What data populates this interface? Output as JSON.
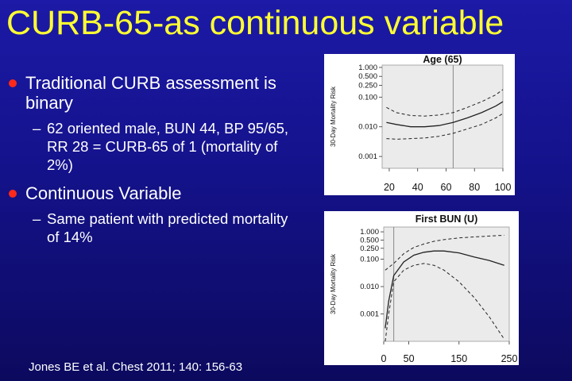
{
  "slide": {
    "title": "CURB-65-as continuous variable",
    "bullets": [
      {
        "text": "Traditional CURB assessment is binary",
        "sub": "62 oriented male, BUN 44, BP 95/65, RR 28 = CURB-65 of 1 (mortality of 2%)"
      },
      {
        "text": "Continuous Variable",
        "sub": "Same patient with predicted mortality of 14%"
      }
    ],
    "citation": "Jones BE et al. Chest 2011; 140: 156-63",
    "bullet_dash": "–"
  },
  "colors": {
    "background": "#14128a",
    "title": "#ffff33",
    "bullet_dot": "#ff2a1a",
    "text": "#ffffff"
  },
  "chart_data": [
    {
      "type": "line",
      "title": "Age (65)",
      "ylabel": "30-Day Mortality Risk",
      "xlabel": "",
      "y_scale": "log",
      "y_ticks": [
        "1.000",
        "0.500",
        "0.250",
        "0.100",
        "0.010",
        "0.001"
      ],
      "x_ticks": [
        "20",
        "40",
        "60",
        "80",
        "100"
      ],
      "xlim": [
        15,
        100
      ],
      "ylim": [
        0.0004,
        1.2
      ],
      "reference_x": 65,
      "series": [
        {
          "x": [
            18,
            25,
            35,
            45,
            55,
            65,
            75,
            85,
            95,
            100
          ],
          "y": [
            0.014,
            0.012,
            0.01,
            0.01,
            0.011,
            0.014,
            0.02,
            0.03,
            0.05,
            0.07
          ]
        },
        {
          "x": [
            18,
            25,
            35,
            45,
            55,
            65,
            75,
            85,
            95,
            100
          ],
          "y": [
            0.045,
            0.03,
            0.024,
            0.023,
            0.025,
            0.03,
            0.045,
            0.07,
            0.12,
            0.18
          ]
        },
        {
          "x": [
            18,
            25,
            35,
            45,
            55,
            65,
            75,
            85,
            95,
            100
          ],
          "y": [
            0.004,
            0.0038,
            0.004,
            0.0042,
            0.0048,
            0.006,
            0.0085,
            0.012,
            0.02,
            0.028
          ]
        }
      ]
    },
    {
      "type": "line",
      "title": "First BUN (U)",
      "ylabel": "30-Day Mortality Risk",
      "xlabel": "",
      "y_scale": "log",
      "y_ticks": [
        "1.000",
        "0.500",
        "0.250",
        "0.100",
        "0.010",
        "0.001"
      ],
      "x_ticks": [
        "0",
        "50",
        "150",
        "250"
      ],
      "xlim": [
        0,
        250
      ],
      "ylim": [
        0.0001,
        1.5
      ],
      "reference_x": 20,
      "series": [
        {
          "x": [
            3,
            10,
            20,
            40,
            60,
            80,
            100,
            120,
            150,
            180,
            210,
            240
          ],
          "y": [
            0.0003,
            0.003,
            0.025,
            0.08,
            0.14,
            0.18,
            0.2,
            0.2,
            0.17,
            0.12,
            0.09,
            0.06
          ]
        },
        {
          "x": [
            3,
            10,
            20,
            40,
            60,
            80,
            100,
            120,
            150,
            180,
            210,
            240
          ],
          "y": [
            0.04,
            0.05,
            0.07,
            0.16,
            0.27,
            0.36,
            0.45,
            0.52,
            0.6,
            0.65,
            0.7,
            0.75
          ]
        },
        {
          "x": [
            3,
            10,
            20,
            40,
            60,
            80,
            100,
            120,
            150,
            180,
            210,
            240
          ],
          "y": [
            0.0001,
            0.001,
            0.015,
            0.04,
            0.06,
            0.07,
            0.06,
            0.04,
            0.015,
            0.004,
            0.0008,
            0.00012
          ]
        }
      ]
    }
  ]
}
